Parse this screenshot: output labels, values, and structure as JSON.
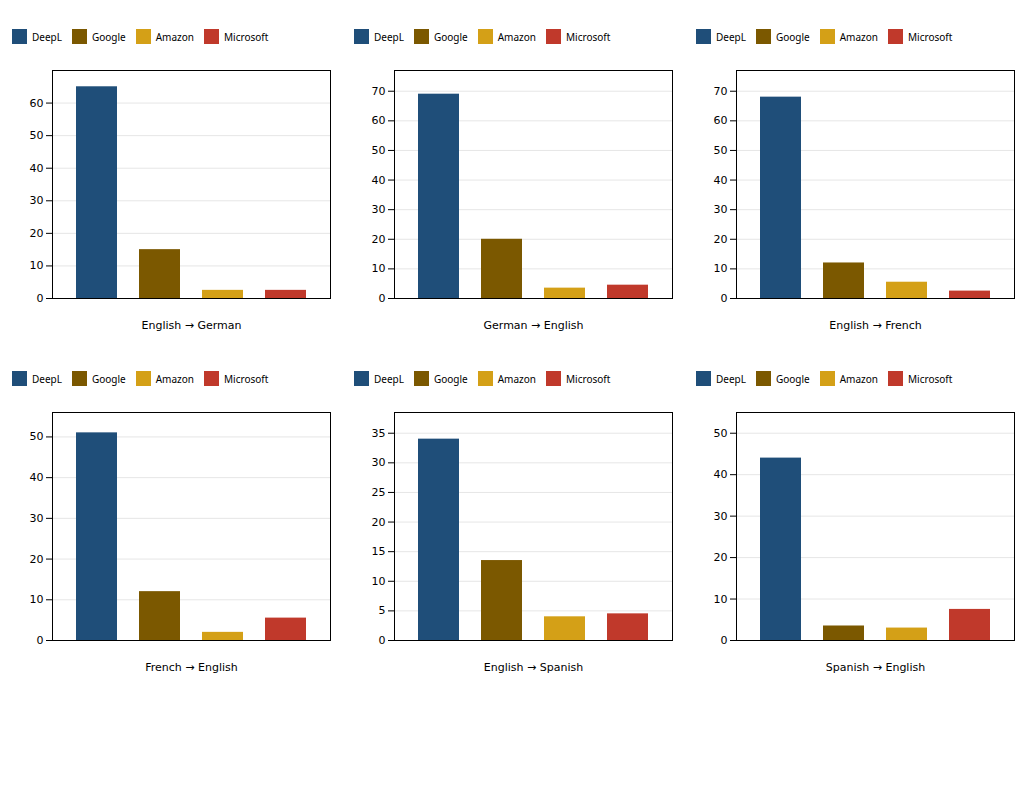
{
  "chart_data": [
    {
      "type": "bar",
      "xlabel": "English → German",
      "categories": [
        "DeepL",
        "Google",
        "Amazon",
        "Microsoft"
      ],
      "values": [
        65,
        15,
        2.5,
        2.5
      ],
      "colors": [
        "#1f4e79",
        "#7b5800",
        "#d4a017",
        "#c0392b"
      ],
      "ylim": [
        0,
        70
      ],
      "yticks": [
        0,
        10,
        20,
        30,
        40,
        50,
        60
      ],
      "grid": true,
      "legend": "top",
      "tick_labels": "y"
    },
    {
      "type": "bar",
      "xlabel": "German → English",
      "categories": [
        "DeepL",
        "Google",
        "Amazon",
        "Microsoft"
      ],
      "values": [
        69,
        20,
        3.5,
        4.5
      ],
      "colors": [
        "#1f4e79",
        "#7b5800",
        "#d4a017",
        "#c0392b"
      ],
      "ylim": [
        0,
        77
      ],
      "yticks": [
        0,
        10,
        20,
        30,
        40,
        50,
        60,
        70
      ],
      "grid": true,
      "legend": "top",
      "tick_labels": "y"
    },
    {
      "type": "bar",
      "xlabel": "English → French",
      "categories": [
        "DeepL",
        "Google",
        "Amazon",
        "Microsoft"
      ],
      "values": [
        68,
        12,
        5.5,
        2.5
      ],
      "colors": [
        "#1f4e79",
        "#7b5800",
        "#d4a017",
        "#c0392b"
      ],
      "ylim": [
        0,
        77
      ],
      "yticks": [
        0,
        10,
        20,
        30,
        40,
        50,
        60,
        70
      ],
      "grid": true,
      "legend": "top",
      "tick_labels": "y"
    },
    {
      "type": "bar",
      "xlabel": "French → English",
      "categories": [
        "DeepL",
        "Google",
        "Amazon",
        "Microsoft"
      ],
      "values": [
        51,
        12,
        2,
        5.5
      ],
      "colors": [
        "#1f4e79",
        "#7b5800",
        "#d4a017",
        "#c0392b"
      ],
      "ylim": [
        0,
        56
      ],
      "yticks": [
        0,
        10,
        20,
        30,
        40,
        50
      ],
      "grid": true,
      "legend": "top",
      "tick_labels": "y"
    },
    {
      "type": "bar",
      "xlabel": "English → Spanish",
      "categories": [
        "DeepL",
        "Google",
        "Amazon",
        "Microsoft"
      ],
      "values": [
        34,
        13.5,
        4,
        4.5
      ],
      "colors": [
        "#1f4e79",
        "#7b5800",
        "#d4a017",
        "#c0392b"
      ],
      "ylim": [
        0,
        38.5
      ],
      "yticks": [
        0,
        5,
        10,
        15,
        20,
        25,
        30,
        35
      ],
      "grid": true,
      "legend": "top",
      "tick_labels": "y"
    },
    {
      "type": "bar",
      "xlabel": "Spanish → English",
      "categories": [
        "DeepL",
        "Google",
        "Amazon",
        "Microsoft"
      ],
      "values": [
        44,
        3.5,
        3,
        7.5
      ],
      "colors": [
        "#1f4e79",
        "#7b5800",
        "#d4a017",
        "#c0392b"
      ],
      "ylim": [
        0,
        55
      ],
      "yticks": [
        0,
        10,
        20,
        30,
        40,
        50
      ],
      "grid": true,
      "legend": "top",
      "tick_labels": "y"
    }
  ]
}
